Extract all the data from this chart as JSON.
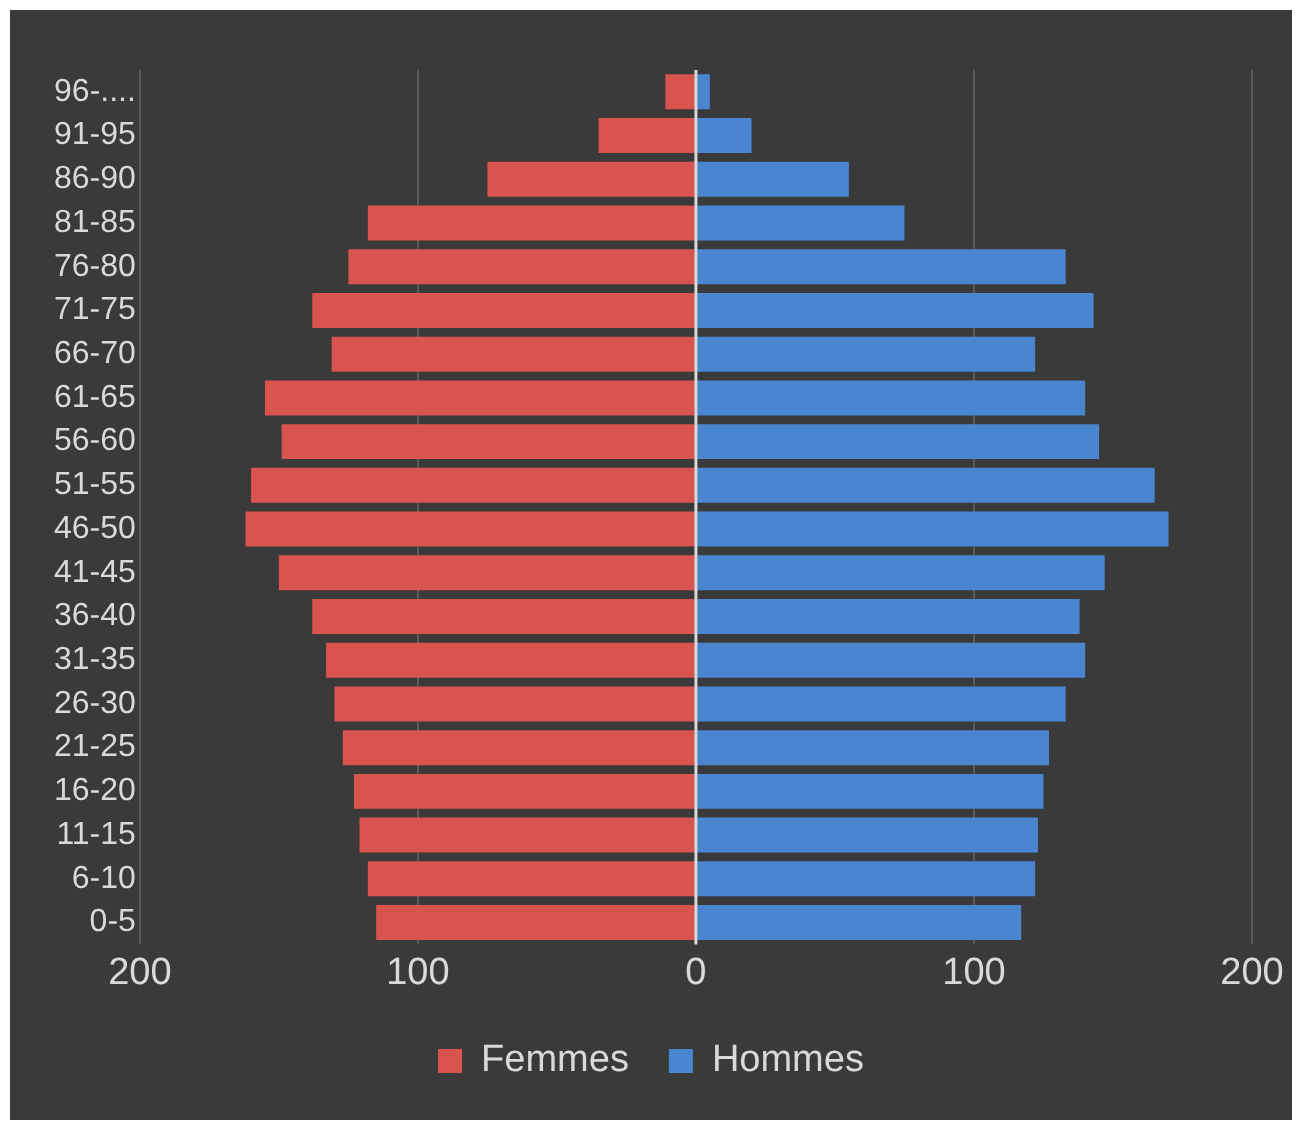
{
  "chart_data": {
    "type": "bar",
    "orientation": "horizontal",
    "stacked": true,
    "categories": [
      "96-....",
      "91-95",
      "86-90",
      "81-85",
      "76-80",
      "71-75",
      "66-70",
      "61-65",
      "56-60",
      "51-55",
      "46-50",
      "41-45",
      "36-40",
      "31-35",
      "26-30",
      "21-25",
      "16-20",
      "11-15",
      "6-10",
      "0-5"
    ],
    "series": [
      {
        "name": "Femmes",
        "color": "#d9534f",
        "values": [
          -11,
          -35,
          -75,
          -118,
          -125,
          -138,
          -131,
          -155,
          -149,
          -160,
          -162,
          -150,
          -138,
          -133,
          -130,
          -127,
          -123,
          -121,
          -118,
          -115
        ]
      },
      {
        "name": "Hommes",
        "color": "#4a86d0",
        "values": [
          5,
          20,
          55,
          75,
          133,
          143,
          122,
          140,
          145,
          165,
          170,
          147,
          138,
          140,
          133,
          127,
          125,
          123,
          122,
          117
        ]
      }
    ],
    "xlim": [
      -200,
      200
    ],
    "xticks": [
      {
        "value": -200,
        "label": "200"
      },
      {
        "value": -100,
        "label": "100"
      },
      0,
      100,
      200
    ],
    "grid": "x",
    "legend": "bottom"
  }
}
